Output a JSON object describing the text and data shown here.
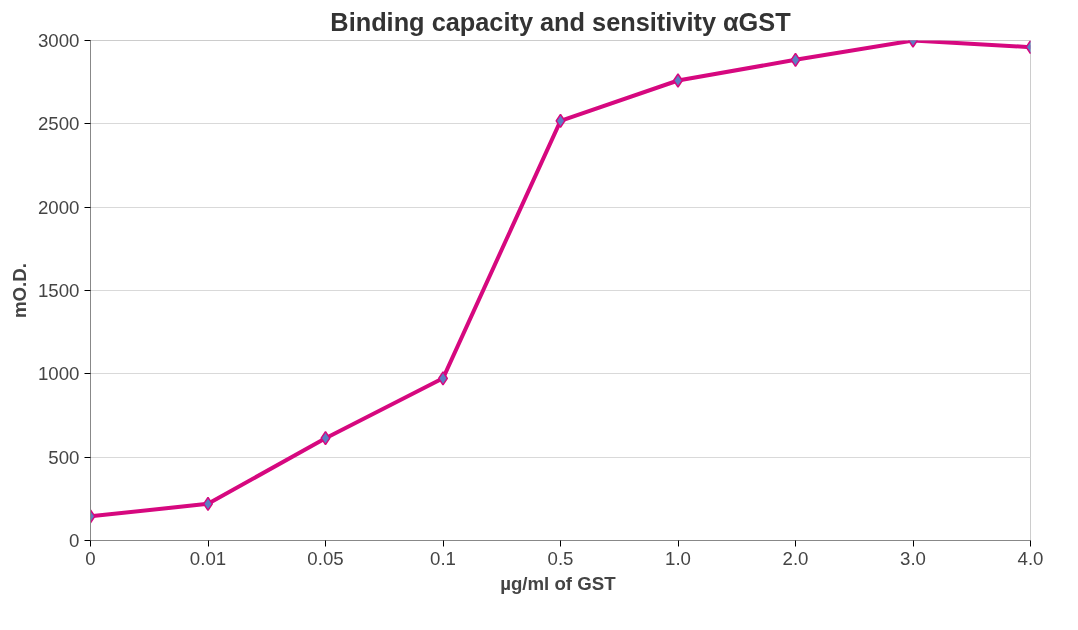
{
  "chart_data": {
    "type": "line",
    "title": "Binding capacity and sensitivity αGST",
    "xlabel": "µg/ml  of GST",
    "ylabel": "mO.D.",
    "categories": [
      "0",
      "0.01",
      "0.05",
      "0.1",
      "0.5",
      "1.0",
      "2.0",
      "3.0",
      "4.0"
    ],
    "series": [
      {
        "color": "#d6087f",
        "values": [
          145,
          220,
          614,
          973,
          2518,
          2760,
          2884,
          3000,
          2960
        ]
      }
    ],
    "ylim": [
      0,
      3000
    ],
    "yticks": [
      0,
      500,
      1000,
      1500,
      2000,
      2500,
      3000
    ],
    "grid": "y",
    "marker": "diamond",
    "line_style": "solid"
  }
}
